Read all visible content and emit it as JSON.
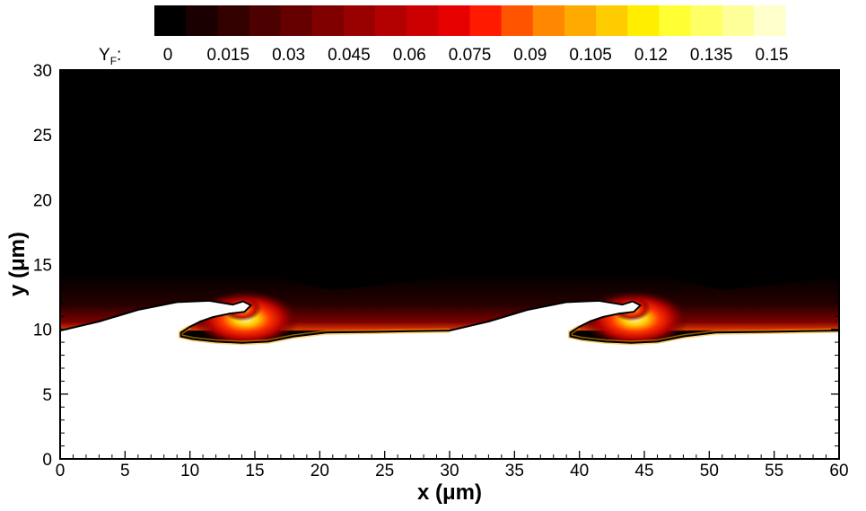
{
  "chart_data": {
    "type": "heatmap",
    "title": "",
    "xlabel": "x (μm)",
    "ylabel": "y (μm)",
    "xlim": [
      0,
      60
    ],
    "ylim": [
      0,
      30
    ],
    "xticks": [
      "0",
      "5",
      "10",
      "15",
      "20",
      "25",
      "30",
      "35",
      "40",
      "45",
      "50",
      "55",
      "60"
    ],
    "yticks": [
      "0",
      "5",
      "10",
      "15",
      "20",
      "25",
      "30"
    ],
    "colorbar": {
      "label_main": "Y",
      "label_sub": "F",
      "label_suffix": ":",
      "range": [
        0,
        0.15
      ],
      "tick_labels": [
        "0",
        "0.015",
        "0.03",
        "0.045",
        "0.06",
        "0.075",
        "0.09",
        "0.105",
        "0.12",
        "0.135",
        "0.15"
      ],
      "colors": [
        "#000000",
        "#1a0000",
        "#330000",
        "#4d0000",
        "#660000",
        "#800000",
        "#990000",
        "#b30000",
        "#cc0000",
        "#e60000",
        "#ff1a00",
        "#ff5500",
        "#ff8800",
        "#ffaa00",
        "#ffcc00",
        "#ffee00",
        "#ffff33",
        "#ffff66",
        "#ffff99",
        "#ffffcc"
      ]
    },
    "interface": {
      "period_x": 30,
      "points": [
        [
          0,
          9.9
        ],
        [
          3,
          10.6
        ],
        [
          6,
          11.5
        ],
        [
          9,
          12.1
        ],
        [
          11.5,
          12.2
        ],
        [
          13.3,
          11.9
        ],
        [
          14.1,
          12.15
        ],
        [
          14.7,
          11.85
        ],
        [
          14.2,
          11.35
        ],
        [
          13,
          11.2
        ],
        [
          11.8,
          10.95
        ],
        [
          10.8,
          10.6
        ],
        [
          10,
          10.2
        ],
        [
          9.3,
          9.75
        ],
        [
          9.3,
          9.45
        ],
        [
          10.2,
          9.25
        ],
        [
          12,
          9.05
        ],
        [
          14,
          8.95
        ],
        [
          16,
          9.05
        ],
        [
          18,
          9.45
        ],
        [
          20.5,
          9.75
        ],
        [
          24,
          9.8
        ],
        [
          27,
          9.85
        ],
        [
          30,
          9.9
        ]
      ]
    }
  }
}
